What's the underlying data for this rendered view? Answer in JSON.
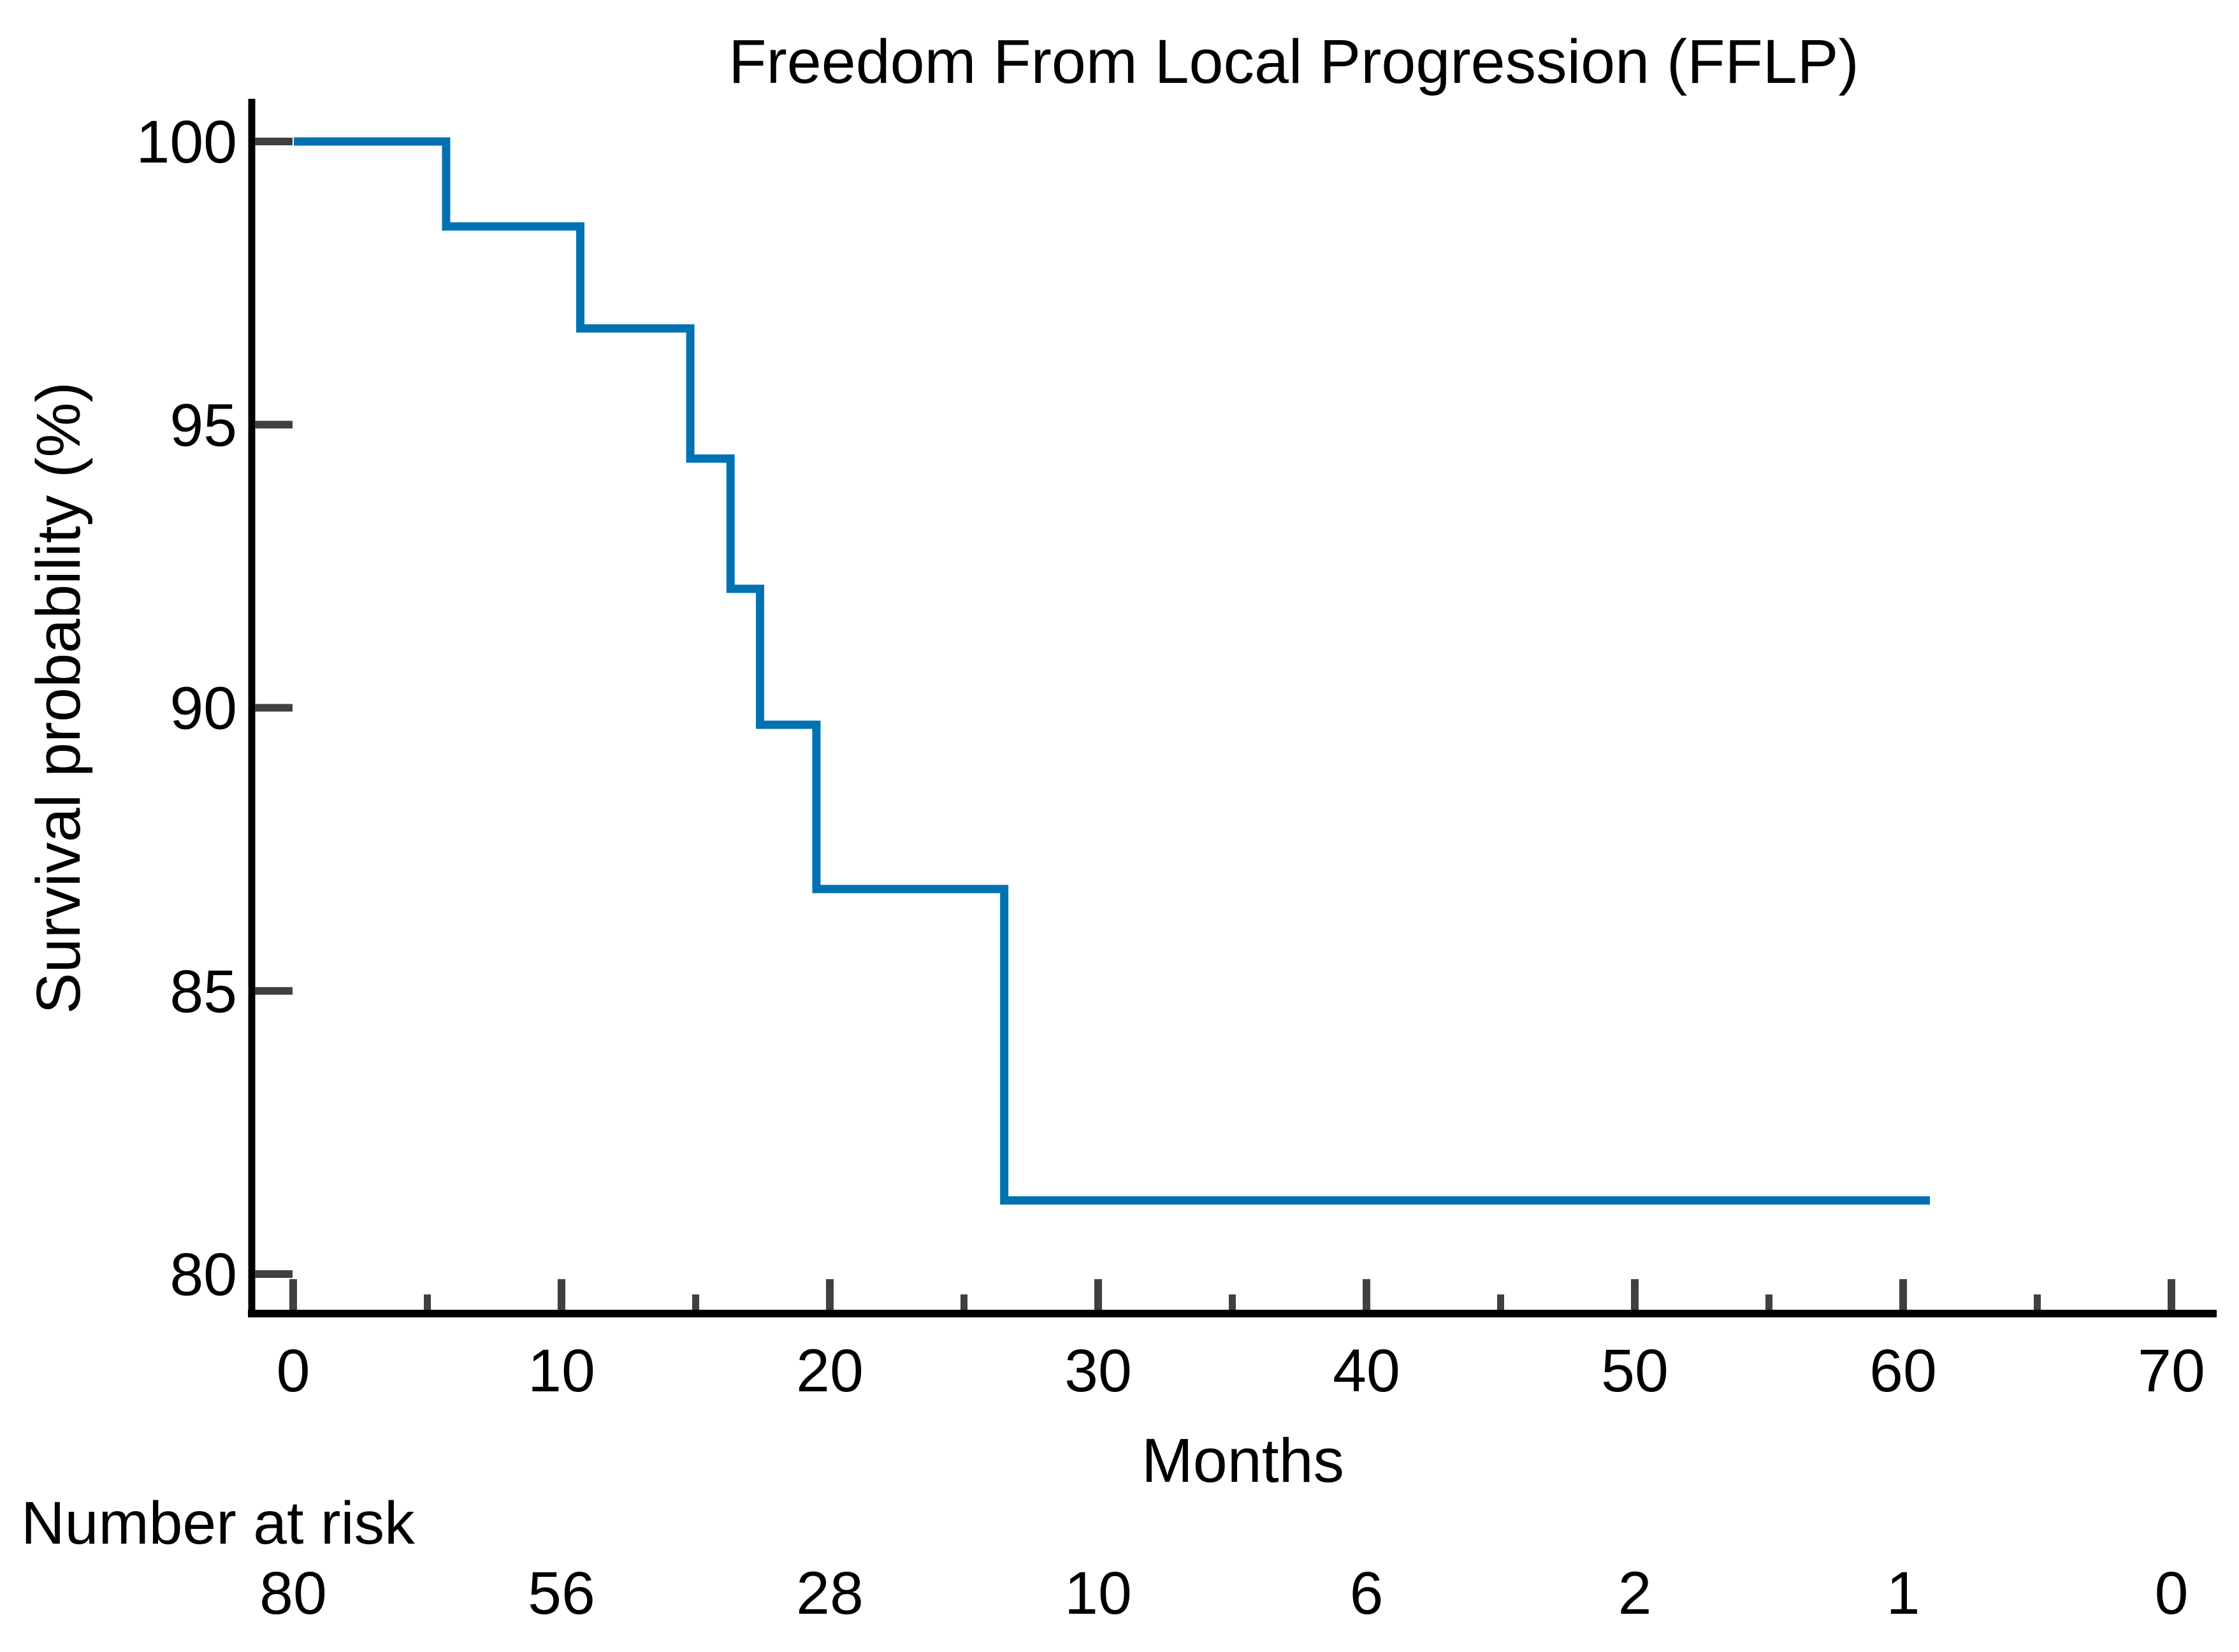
{
  "title": "Freedom From Local Progression (FFLP)",
  "y_axis": {
    "label": "Survival probability (%)",
    "tick_labels": [
      "100",
      "95",
      "90",
      "85",
      "80"
    ]
  },
  "x_axis": {
    "label": "Months",
    "tick_labels": [
      "0",
      "10",
      "20",
      "30",
      "40",
      "50",
      "60",
      "70"
    ]
  },
  "number_at_risk": {
    "label": "Number at risk",
    "values": [
      "80",
      "56",
      "28",
      "10",
      "6",
      "2",
      "1",
      "0"
    ]
  },
  "colors": {
    "curve": "#0072B2",
    "axis": "#000000",
    "tick": "#404040",
    "risk_label_text": "#2121AE",
    "text": "#000000"
  },
  "chart_data": {
    "type": "line",
    "subtype": "kaplan-meier-step-curve",
    "title": "Freedom From Local Progression (FFLP)",
    "xlabel": "Months",
    "ylabel": "Survival probability (%)",
    "xlim": [
      0,
      73
    ],
    "ylim": [
      79.5,
      100.5
    ],
    "grid": false,
    "legend": "none",
    "x_major_ticks": [
      0,
      10,
      20,
      30,
      40,
      50,
      60,
      70
    ],
    "x_minor_ticks": [
      5,
      15,
      25,
      35,
      45,
      55,
      65
    ],
    "y_ticks": [
      100,
      95,
      90,
      85,
      80
    ],
    "series": [
      {
        "name": "FFLP",
        "color": "#0072B2",
        "start_point": {
          "t": 0,
          "s": 100
        },
        "drop_times": [
          5.7,
          10.7,
          14.8,
          16.3,
          17.4,
          19.5,
          26.5
        ],
        "survival_after_drop": [
          98.5,
          96.7,
          94.4,
          92.1,
          89.7,
          86.8,
          81.3
        ],
        "end_time": 61
      }
    ],
    "number_at_risk": {
      "label": "Number at risk",
      "times": [
        0,
        10,
        20,
        30,
        40,
        50,
        60,
        70
      ],
      "values": [
        80,
        56,
        28,
        10,
        6,
        2,
        1,
        0
      ]
    }
  }
}
